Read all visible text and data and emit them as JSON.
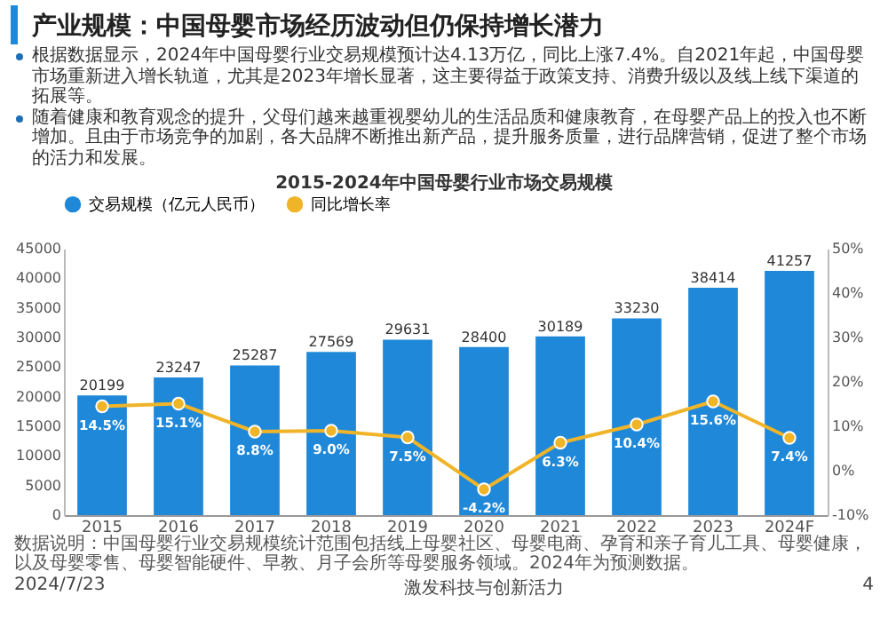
{
  "chart_data": {
    "type": "bar",
    "title": "产业规模：中国母婴市场经历波动但仍保持增长潜力",
    "subtitle": "2015-2024年中国母婴行业市场交易规模",
    "categories": [
      "2015",
      "2016",
      "2017",
      "2018",
      "2019",
      "2020",
      "2021",
      "2022",
      "2023",
      "2024F"
    ],
    "series": [
      {
        "name": "交易规模（亿元人民币）",
        "color": "#1f88d9",
        "values": [
          20199,
          23247,
          25287,
          27569,
          29631,
          28400,
          30189,
          33230,
          38414,
          41257
        ],
        "value_labels": [
          "20199",
          "23247",
          "25287",
          "27569",
          "29631",
          "28400",
          "30189",
          "33230",
          "38414",
          "41257"
        ]
      },
      {
        "name": "同比增长率",
        "type": "line",
        "axis": "y2",
        "color": "#f0b429",
        "values": [
          14.5,
          15.1,
          8.8,
          9.0,
          7.5,
          -4.2,
          6.3,
          10.4,
          15.6,
          7.4
        ],
        "value_labels": [
          "14.5%",
          "15.1%",
          "8.8%",
          "9.0%",
          "7.5%",
          "-4.2%",
          "6.3%",
          "10.4%",
          "15.6%",
          "7.4%"
        ]
      }
    ],
    "ylim": [
      0,
      45000
    ],
    "yticks": [
      0,
      5000,
      10000,
      15000,
      20000,
      25000,
      30000,
      35000,
      40000,
      45000
    ],
    "y2lim": [
      -10,
      50
    ],
    "y2ticks": [
      {
        "value": -10,
        "label": "-10%"
      },
      {
        "value": 0,
        "label": "0%"
      },
      {
        "value": 10,
        "label": "10%"
      },
      {
        "value": 20,
        "label": "20%"
      },
      {
        "value": 30,
        "label": "30%"
      },
      {
        "value": 40,
        "label": "40%"
      },
      {
        "value": 50,
        "label": "50%"
      }
    ],
    "legend": "top",
    "marker": "circle",
    "annotations": [
      "根据数据显示，2024年中国母婴行业交易规模预计达4.13万亿，同比上涨7.4%。自2021年起，中国母婴市场重新进入增长轨道，尤其是2023年增长显著，这主要得益于政策支持、消费升级以及线上线下渠道的拓展等。",
      "随着健康和教育观念的提升，父母们越来越重视婴幼儿的生活品质和健康教育，在母婴产品上的投入也不断增加。且由于市场竞争的加剧，各大品牌不断推出新产品，提升服务质量，进行品牌营销，促进了整个市场的活力和发展。",
      "数据说明：中国母婴行业交易规模统计范围包括线上母婴社区、母婴电商、孕育和亲子育儿工具、母婴健康，以及母婴零售、母婴智能硬件、早教、月子会所等母婴服务领域。2024年为预测数据。",
      "2024/7/23",
      "激发科技与创新活力",
      "4"
    ]
  }
}
